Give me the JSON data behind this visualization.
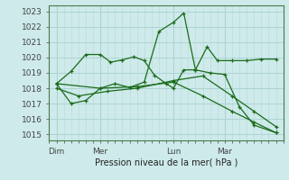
{
  "bg_color": "#ceeaea",
  "grid_color_major": "#aed4d4",
  "grid_color_minor": "#bedddd",
  "line_color": "#1a6b1a",
  "title": "Pression niveau de la mer( hPa )",
  "ylabel_values": [
    1015,
    1016,
    1017,
    1018,
    1019,
    1020,
    1021,
    1022,
    1023
  ],
  "ylim": [
    1014.6,
    1023.4
  ],
  "xtick_labels": [
    "Dim",
    "Mer",
    "Lun",
    "Mar"
  ],
  "xtick_positions": [
    0.5,
    3.5,
    8.5,
    12.0
  ],
  "vline_positions": [
    0.5,
    3.5,
    8.5,
    12.0
  ],
  "xlim": [
    0,
    16
  ],
  "series": [
    {
      "x": [
        0.5,
        1.5,
        2.5,
        3.5,
        4.2,
        5.0,
        5.8,
        6.5,
        7.2,
        8.0,
        8.5,
        9.2,
        10.0,
        10.8,
        11.5,
        12.5,
        13.5,
        14.5,
        15.5
      ],
      "y": [
        1018.3,
        1019.1,
        1020.2,
        1020.2,
        1019.7,
        1019.85,
        1020.05,
        1019.8,
        1018.85,
        1018.3,
        1018.0,
        1019.2,
        1019.2,
        1020.7,
        1019.8,
        1019.8,
        1019.8,
        1019.9,
        1019.9
      ]
    },
    {
      "x": [
        0.5,
        2.0,
        4.0,
        6.0,
        8.5,
        10.5,
        12.5,
        14.0,
        15.5
      ],
      "y": [
        1018.0,
        1017.5,
        1017.8,
        1018.0,
        1018.5,
        1018.8,
        1017.5,
        1016.5,
        1015.5
      ]
    },
    {
      "x": [
        0.5,
        1.5,
        2.5,
        3.5,
        4.5,
        5.5,
        6.5,
        7.5,
        8.5,
        9.2,
        10.0,
        11.0,
        12.0,
        13.0,
        14.0,
        15.5
      ],
      "y": [
        1018.3,
        1017.0,
        1017.2,
        1018.0,
        1018.3,
        1018.05,
        1018.4,
        1021.7,
        1022.3,
        1022.9,
        1019.2,
        1019.0,
        1018.9,
        1016.8,
        1015.6,
        1015.1
      ]
    },
    {
      "x": [
        0.5,
        3.5,
        6.0,
        8.5,
        10.5,
        12.5,
        14.0,
        15.5
      ],
      "y": [
        1018.3,
        1018.0,
        1018.1,
        1018.4,
        1017.5,
        1016.5,
        1015.8,
        1015.1
      ]
    }
  ]
}
